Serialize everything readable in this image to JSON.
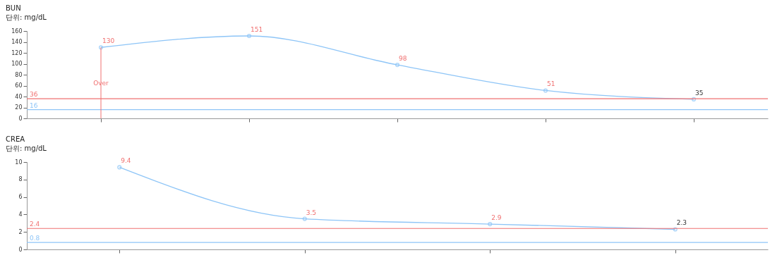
{
  "chart_data": [
    {
      "type": "line",
      "title": "BUN",
      "subtitle": "단위: mg/dL",
      "categories": [
        null,
        null,
        null,
        null,
        null
      ],
      "series": [
        {
          "color": "#8ec5f7",
          "values": [
            130,
            151,
            98,
            51,
            35
          ]
        }
      ],
      "ylim": [
        0,
        160
      ],
      "yticks": [
        0,
        20,
        40,
        60,
        80,
        100,
        120,
        140,
        160
      ],
      "grid": false,
      "marker": "circle",
      "line_style": "solid",
      "data_labels": true,
      "ref_lines": [
        {
          "axis": "y",
          "value": 36,
          "label": "36",
          "color": "#f07070"
        },
        {
          "axis": "y",
          "value": 16,
          "label": "16",
          "color": "#8ec5f7"
        }
      ],
      "annotations": [
        "Over"
      ]
    },
    {
      "type": "line",
      "title": "CREA",
      "subtitle": "단위: mg/dL",
      "categories": [
        null,
        null,
        null,
        null
      ],
      "series": [
        {
          "color": "#8ec5f7",
          "values": [
            9.4,
            3.5,
            2.9,
            2.3
          ]
        }
      ],
      "ylim": [
        0,
        10
      ],
      "yticks": [
        0,
        2,
        4,
        6,
        8,
        10
      ],
      "grid": false,
      "marker": "circle",
      "line_style": "solid",
      "data_labels": true,
      "ref_lines": [
        {
          "axis": "y",
          "value": 2.4,
          "label": "2.4",
          "color": "#f07070"
        },
        {
          "axis": "y",
          "value": 0.8,
          "label": "0.8",
          "color": "#8ec5f7"
        }
      ]
    }
  ]
}
